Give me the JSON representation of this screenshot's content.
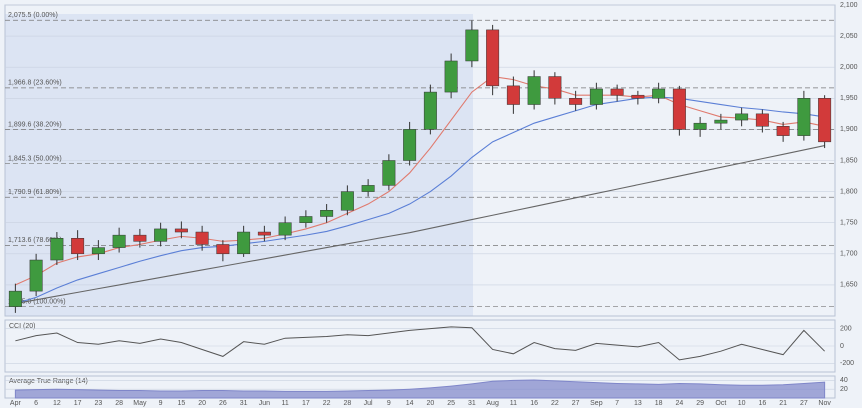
{
  "chart_data": [
    {
      "type": "candlestick",
      "categories": [
        "Apr",
        "6",
        "12",
        "17",
        "23",
        "28",
        "May",
        "9",
        "15",
        "20",
        "26",
        "31",
        "Jun",
        "11",
        "17",
        "22",
        "28",
        "Jul",
        "9",
        "14",
        "20",
        "25",
        "31",
        "Aug",
        "11",
        "16",
        "22",
        "27",
        "Sep",
        "7",
        "13",
        "18",
        "24",
        "29",
        "Oct",
        "10",
        "16",
        "21",
        "27",
        "Nov"
      ],
      "open": [
        1615,
        1640,
        1690,
        1725,
        1700,
        1710,
        1730,
        1720,
        1740,
        1735,
        1715,
        1700,
        1735,
        1730,
        1750,
        1760,
        1770,
        1800,
        1810,
        1850,
        1900,
        1960,
        2010,
        2060,
        1970,
        1940,
        1985,
        1950,
        1940,
        1965,
        1955,
        1950,
        1965,
        1900,
        1910,
        1915,
        1925,
        1905,
        1890,
        1950
      ],
      "high": [
        1652,
        1700,
        1735,
        1738,
        1722,
        1742,
        1740,
        1750,
        1752,
        1745,
        1722,
        1745,
        1745,
        1760,
        1770,
        1780,
        1810,
        1820,
        1860,
        1912,
        1972,
        2022,
        2075,
        2068,
        1985,
        1995,
        1992,
        1962,
        1975,
        1972,
        1962,
        1975,
        1970,
        1920,
        1925,
        1935,
        1932,
        1912,
        1962,
        1955
      ],
      "low": [
        1605,
        1632,
        1682,
        1690,
        1690,
        1702,
        1710,
        1712,
        1725,
        1705,
        1688,
        1695,
        1720,
        1722,
        1742,
        1750,
        1762,
        1792,
        1802,
        1842,
        1892,
        1950,
        2000,
        1955,
        1925,
        1932,
        1940,
        1930,
        1932,
        1945,
        1940,
        1942,
        1890,
        1888,
        1900,
        1905,
        1895,
        1880,
        1882,
        1870
      ],
      "close": [
        1640,
        1690,
        1725,
        1700,
        1710,
        1730,
        1720,
        1740,
        1735,
        1715,
        1700,
        1735,
        1730,
        1750,
        1760,
        1770,
        1800,
        1810,
        1850,
        1900,
        1960,
        2010,
        2060,
        1970,
        1940,
        1985,
        1950,
        1940,
        1965,
        1955,
        1950,
        1965,
        1900,
        1910,
        1915,
        1925,
        1905,
        1890,
        1950,
        1880
      ],
      "up_color": "#3f9a3f",
      "down_color": "#d23a3a",
      "series": [
        {
          "color": "#e07a6e",
          "values": [
            1650,
            1665,
            1685,
            1695,
            1700,
            1710,
            1715,
            1722,
            1728,
            1725,
            1720,
            1722,
            1725,
            1732,
            1740,
            1750,
            1765,
            1780,
            1800,
            1830,
            1870,
            1915,
            1960,
            1985,
            1980,
            1970,
            1965,
            1955,
            1955,
            1955,
            1952,
            1955,
            1940,
            1930,
            1920,
            1918,
            1915,
            1908,
            1912,
            1905
          ]
        },
        {
          "color": "#5b7fd6",
          "values": [
            1620,
            1630,
            1645,
            1658,
            1668,
            1678,
            1688,
            1697,
            1705,
            1710,
            1712,
            1716,
            1720,
            1725,
            1730,
            1736,
            1745,
            1755,
            1765,
            1780,
            1800,
            1825,
            1855,
            1880,
            1895,
            1910,
            1920,
            1930,
            1940,
            1945,
            1950,
            1952,
            1950,
            1945,
            1940,
            1935,
            1932,
            1928,
            1925,
            1920
          ]
        },
        {
          "color": "#666666",
          "values": [
            1620,
            1626,
            1632,
            1638,
            1644,
            1650,
            1656,
            1662,
            1668,
            1674,
            1680,
            1686,
            1692,
            1698,
            1704,
            1710,
            1716,
            1722,
            1728,
            1734,
            1741,
            1748,
            1755,
            1762,
            1769,
            1776,
            1783,
            1790,
            1797,
            1804,
            1811,
            1818,
            1825,
            1832,
            1839,
            1846,
            1853,
            1860,
            1867,
            1874
          ]
        }
      ],
      "levels": [
        {
          "value": 2075.5,
          "label": "2,075.5 (0.00%)"
        },
        {
          "value": 1966.8,
          "label": "1,966.8 (23.60%)"
        },
        {
          "value": 1899.6,
          "label": "1,899.6 (38.20%)"
        },
        {
          "value": 1845.25,
          "label": "1,845.3 (50.00%)"
        },
        {
          "value": 1790.9,
          "label": "1,790.9 (61.80%)"
        },
        {
          "value": 1713.6,
          "label": "1,713.6 (78.60%)"
        },
        {
          "value": 1615,
          "label": "1,615.0 (100.00%)"
        }
      ],
      "ylim": [
        1600,
        2100
      ],
      "yticks": [
        {
          "value": 1650,
          "label": "1,650"
        },
        {
          "value": 1700,
          "label": "1,700"
        },
        {
          "value": 1750,
          "label": "1,750"
        },
        {
          "value": 1800,
          "label": "1,800"
        },
        {
          "value": 1850,
          "label": "1,850"
        },
        {
          "value": 1900,
          "label": "1,900"
        },
        {
          "value": 1950,
          "label": "1,950"
        },
        {
          "value": 2000,
          "label": "2,000"
        },
        {
          "value": 2050,
          "label": "2,050"
        },
        {
          "value": 2100,
          "label": "2,100"
        }
      ]
    },
    {
      "type": "line",
      "title": "CCI (20)",
      "color": "#555555",
      "values": [
        60,
        120,
        150,
        40,
        20,
        60,
        30,
        80,
        40,
        -40,
        -120,
        50,
        20,
        90,
        100,
        110,
        130,
        120,
        150,
        180,
        200,
        220,
        210,
        -40,
        -90,
        40,
        -30,
        -50,
        30,
        10,
        -10,
        40,
        -160,
        -120,
        -60,
        20,
        -40,
        -100,
        180,
        -60
      ],
      "ylim": [
        -300,
        300
      ],
      "yticks": [
        -200,
        0,
        200
      ]
    },
    {
      "type": "area",
      "title": "Average True Range (14)",
      "color": "#7f86c9",
      "values": [
        18,
        19,
        20,
        19,
        18,
        17,
        17,
        16,
        16,
        17,
        17,
        16,
        16,
        15,
        15,
        15,
        16,
        17,
        18,
        20,
        23,
        27,
        32,
        38,
        40,
        41,
        39,
        37,
        35,
        33,
        32,
        31,
        33,
        32,
        30,
        29,
        29,
        30,
        33,
        36
      ],
      "ylim": [
        0,
        50
      ],
      "yticks": [
        20,
        40
      ]
    }
  ]
}
